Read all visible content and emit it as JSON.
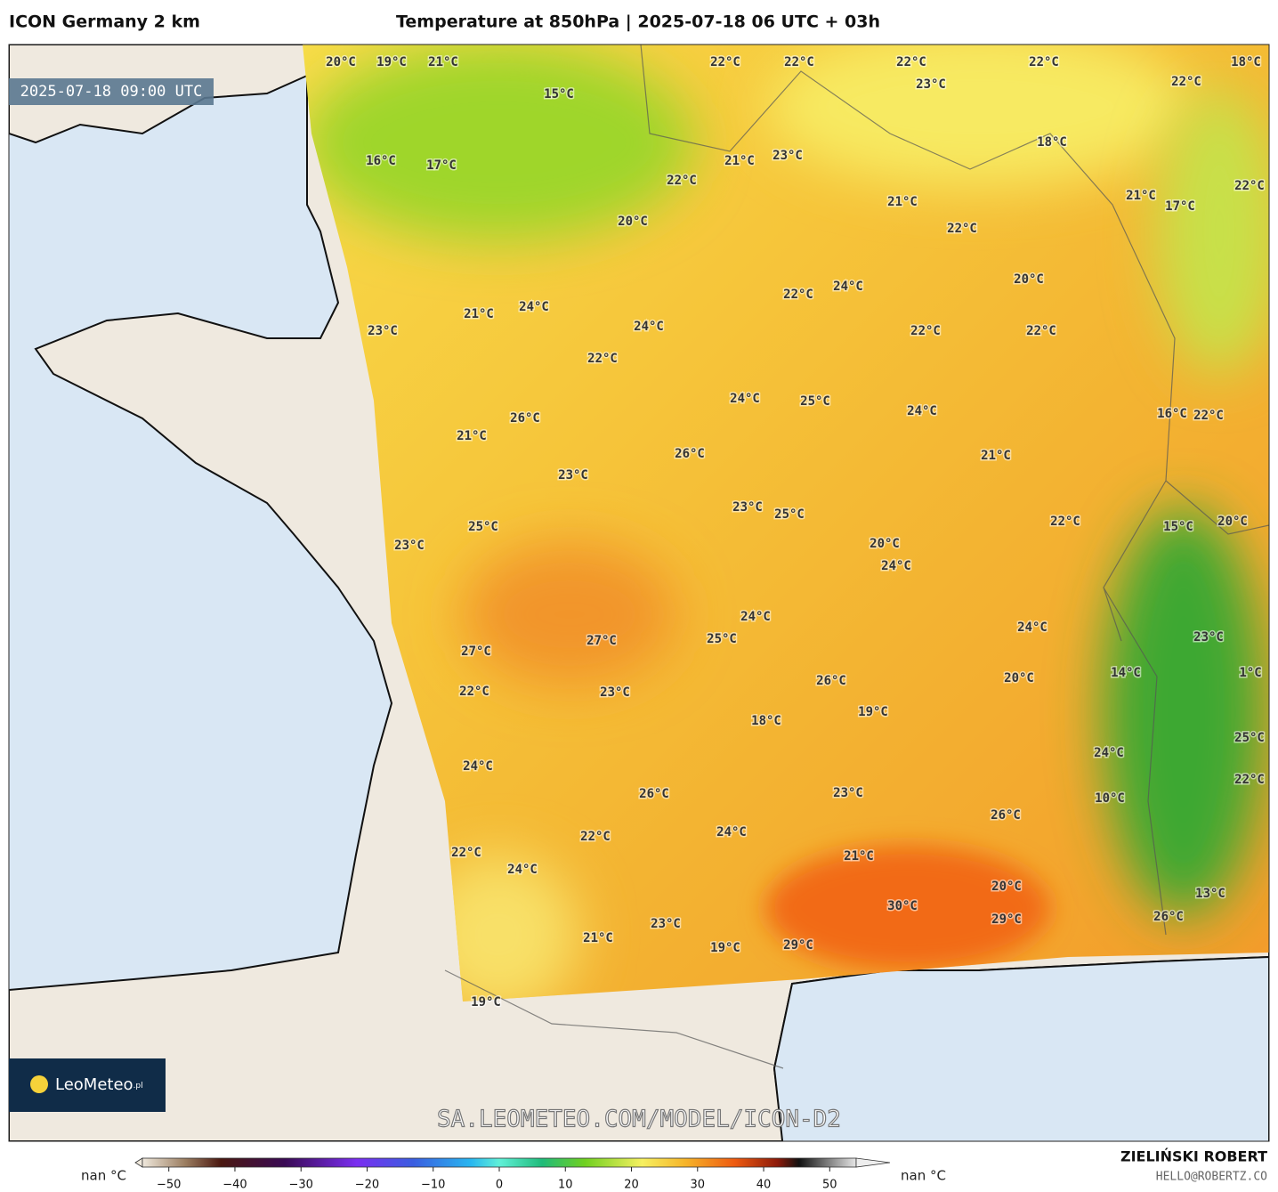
{
  "header": {
    "model": "ICON Germany 2 km",
    "title": "Temperature at 850hPa | 2025-07-18 06 UTC + 03h"
  },
  "map": {
    "timestamp": "2025-07-18 09:00 UTC",
    "labels": [
      "20°C",
      "19°C",
      "21°C",
      "22°C",
      "22°C",
      "22°C",
      "22°C",
      "18°C",
      "15°C",
      "23°C",
      "22°C",
      "16°C",
      "17°C",
      "21°C",
      "23°C",
      "18°C",
      "22°C",
      "21°C",
      "17°C",
      "22°C",
      "21°C",
      "20°C",
      "22°C",
      "20°C",
      "22°C",
      "24°C",
      "24°C",
      "21°C",
      "24°C",
      "23°C",
      "22°C",
      "22°C",
      "22°C",
      "24°C",
      "25°C",
      "24°C",
      "16°C",
      "22°C",
      "26°C",
      "21°C",
      "26°C",
      "21°C",
      "23°C",
      "23°C",
      "25°C",
      "25°C",
      "22°C",
      "15°C",
      "20°C",
      "23°C",
      "20°C",
      "24°C",
      "24°C",
      "24°C",
      "23°C",
      "27°C",
      "25°C",
      "27°C",
      "14°C",
      "1°C",
      "20°C",
      "26°C",
      "22°C",
      "23°C",
      "19°C",
      "18°C",
      "25°C",
      "24°C",
      "24°C",
      "22°C",
      "26°C",
      "23°C",
      "10°C",
      "26°C",
      "24°C",
      "22°C",
      "21°C",
      "22°C",
      "24°C",
      "20°C",
      "13°C",
      "30°C",
      "29°C",
      "26°C",
      "23°C",
      "21°C",
      "29°C",
      "19°C",
      "19°C"
    ],
    "watermark": "SA.LEOMETEO.COM/MODEL/ICON-D2"
  },
  "logo": {
    "name": "LeoMeteo",
    "suffix": ".pl"
  },
  "colorbar": {
    "under_label": "nan °C",
    "over_label": "nan °C",
    "lim": [
      -54,
      54
    ],
    "ticks": [
      {
        "value": -50,
        "label": "−50"
      },
      {
        "value": -40,
        "label": "−40"
      },
      {
        "value": -30,
        "label": "−30"
      },
      {
        "value": -20,
        "label": "−20"
      },
      {
        "value": -10,
        "label": "−10"
      },
      0,
      10,
      20,
      30,
      40,
      50
    ]
  },
  "footer": {
    "author": "ZIELIŃSKI ROBERT",
    "email": "HELLO@ROBERTZ.CO"
  }
}
